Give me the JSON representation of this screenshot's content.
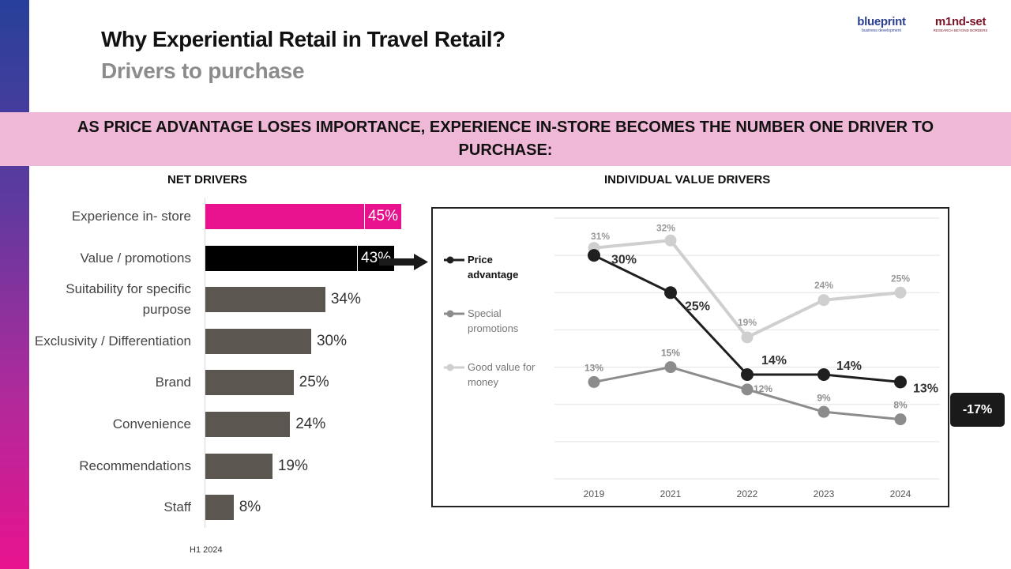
{
  "header": {
    "title": "Why Experiential Retail in Travel Retail?",
    "subtitle": "Drivers to purchase",
    "logo_blueprint": "blueprint",
    "logo_blueprint_sub": "business development",
    "logo_mindset": "m1nd-set",
    "logo_mindset_sub": "RESEARCH BEYOND BORDERS"
  },
  "headline": "AS PRICE ADVANTAGE LOSES IMPORTANCE, EXPERIENCE IN-STORE BECOMES THE NUMBER ONE DRIVER TO PURCHASE:",
  "sections": {
    "net_drivers": "NET DRIVERS",
    "individual_value_drivers": "INDIVIDUAL VALUE DRIVERS"
  },
  "badge": "-17%",
  "footer_note": "H1 2024",
  "colors": {
    "magenta": "#e8128e",
    "black": "#000000",
    "dark_gray": "#5c5651",
    "price_line": "#1f1f1f",
    "promo_line": "#8c8c8c",
    "value_line": "#cfcfcf",
    "banner": "#efb8d6"
  },
  "chart_data": [
    {
      "type": "bar",
      "orientation": "horizontal",
      "title": "NET DRIVERS",
      "categories": [
        "Experience in- store",
        "Value / promotions",
        "Suitability for specific purpose",
        "Exclusivity / Differentiation",
        "Brand",
        "Convenience",
        "Recommendations",
        "Staff"
      ],
      "values": [
        45,
        43,
        34,
        30,
        25,
        24,
        19,
        8
      ],
      "labels": [
        "45%",
        "43%",
        "34%",
        "30%",
        "25%",
        "24%",
        "19%",
        "8%"
      ],
      "bar_colors": [
        "#e8128e",
        "#000000",
        "#5c5651",
        "#5c5651",
        "#5c5651",
        "#5c5651",
        "#5c5651",
        "#5c5651"
      ],
      "label_inside": [
        true,
        true,
        false,
        false,
        false,
        false,
        false,
        false
      ],
      "xlim": [
        0,
        60
      ]
    },
    {
      "type": "line",
      "title": "INDIVIDUAL VALUE DRIVERS",
      "categories": [
        "2019",
        "2021",
        "2022",
        "2023",
        "2024"
      ],
      "ylim": [
        0,
        35
      ],
      "grid": true,
      "legend": "left",
      "series": [
        {
          "name": "Price advantage",
          "values": [
            30,
            25,
            14,
            14,
            13
          ],
          "labels": [
            "30%",
            "25%",
            "14%",
            "14%",
            "13%"
          ],
          "color": "#1f1f1f"
        },
        {
          "name": "Special promotions",
          "values": [
            13,
            15,
            12,
            9,
            8
          ],
          "labels": [
            "13%",
            "15%",
            "12%",
            "9%",
            "8%"
          ],
          "color": "#8c8c8c"
        },
        {
          "name": "Good value for money",
          "values": [
            31,
            32,
            19,
            24,
            25
          ],
          "labels": [
            "31%",
            "32%",
            "19%",
            "24%",
            "25%"
          ],
          "color": "#cfcfcf"
        }
      ]
    }
  ]
}
